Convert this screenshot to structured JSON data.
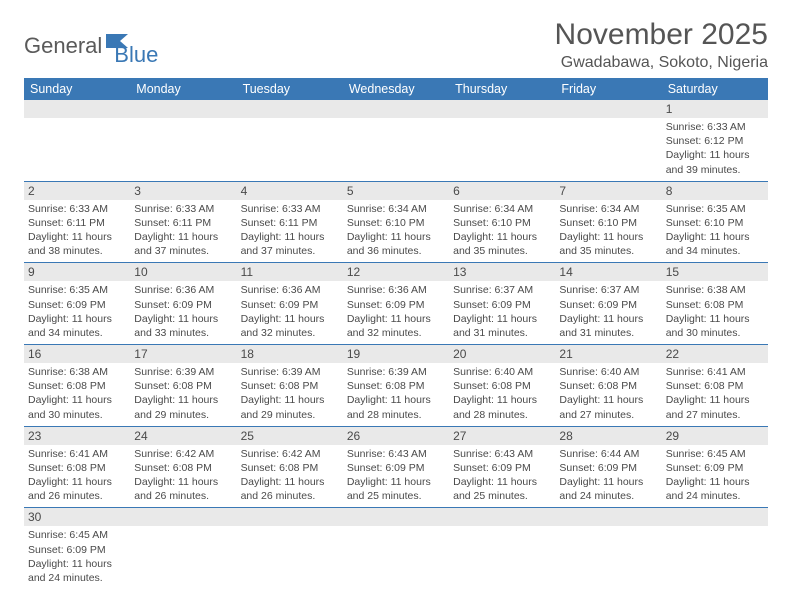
{
  "logo": {
    "text1": "General",
    "text2": "Blue"
  },
  "title": "November 2025",
  "location": "Gwadabawa, Sokoto, Nigeria",
  "colors": {
    "header_bg": "#3a78b5",
    "header_text": "#ffffff",
    "daynum_bg": "#e9e9e9",
    "cell_border": "#3a78b5",
    "text": "#4a4a4a",
    "title": "#555555"
  },
  "weekdays": [
    "Sunday",
    "Monday",
    "Tuesday",
    "Wednesday",
    "Thursday",
    "Friday",
    "Saturday"
  ],
  "weeks": [
    [
      {
        "n": "",
        "empty": true
      },
      {
        "n": "",
        "empty": true
      },
      {
        "n": "",
        "empty": true
      },
      {
        "n": "",
        "empty": true
      },
      {
        "n": "",
        "empty": true
      },
      {
        "n": "",
        "empty": true
      },
      {
        "n": "1",
        "sunrise": "6:33 AM",
        "sunset": "6:12 PM",
        "daylight": "11 hours and 39 minutes."
      }
    ],
    [
      {
        "n": "2",
        "sunrise": "6:33 AM",
        "sunset": "6:11 PM",
        "daylight": "11 hours and 38 minutes."
      },
      {
        "n": "3",
        "sunrise": "6:33 AM",
        "sunset": "6:11 PM",
        "daylight": "11 hours and 37 minutes."
      },
      {
        "n": "4",
        "sunrise": "6:33 AM",
        "sunset": "6:11 PM",
        "daylight": "11 hours and 37 minutes."
      },
      {
        "n": "5",
        "sunrise": "6:34 AM",
        "sunset": "6:10 PM",
        "daylight": "11 hours and 36 minutes."
      },
      {
        "n": "6",
        "sunrise": "6:34 AM",
        "sunset": "6:10 PM",
        "daylight": "11 hours and 35 minutes."
      },
      {
        "n": "7",
        "sunrise": "6:34 AM",
        "sunset": "6:10 PM",
        "daylight": "11 hours and 35 minutes."
      },
      {
        "n": "8",
        "sunrise": "6:35 AM",
        "sunset": "6:10 PM",
        "daylight": "11 hours and 34 minutes."
      }
    ],
    [
      {
        "n": "9",
        "sunrise": "6:35 AM",
        "sunset": "6:09 PM",
        "daylight": "11 hours and 34 minutes."
      },
      {
        "n": "10",
        "sunrise": "6:36 AM",
        "sunset": "6:09 PM",
        "daylight": "11 hours and 33 minutes."
      },
      {
        "n": "11",
        "sunrise": "6:36 AM",
        "sunset": "6:09 PM",
        "daylight": "11 hours and 32 minutes."
      },
      {
        "n": "12",
        "sunrise": "6:36 AM",
        "sunset": "6:09 PM",
        "daylight": "11 hours and 32 minutes."
      },
      {
        "n": "13",
        "sunrise": "6:37 AM",
        "sunset": "6:09 PM",
        "daylight": "11 hours and 31 minutes."
      },
      {
        "n": "14",
        "sunrise": "6:37 AM",
        "sunset": "6:09 PM",
        "daylight": "11 hours and 31 minutes."
      },
      {
        "n": "15",
        "sunrise": "6:38 AM",
        "sunset": "6:08 PM",
        "daylight": "11 hours and 30 minutes."
      }
    ],
    [
      {
        "n": "16",
        "sunrise": "6:38 AM",
        "sunset": "6:08 PM",
        "daylight": "11 hours and 30 minutes."
      },
      {
        "n": "17",
        "sunrise": "6:39 AM",
        "sunset": "6:08 PM",
        "daylight": "11 hours and 29 minutes."
      },
      {
        "n": "18",
        "sunrise": "6:39 AM",
        "sunset": "6:08 PM",
        "daylight": "11 hours and 29 minutes."
      },
      {
        "n": "19",
        "sunrise": "6:39 AM",
        "sunset": "6:08 PM",
        "daylight": "11 hours and 28 minutes."
      },
      {
        "n": "20",
        "sunrise": "6:40 AM",
        "sunset": "6:08 PM",
        "daylight": "11 hours and 28 minutes."
      },
      {
        "n": "21",
        "sunrise": "6:40 AM",
        "sunset": "6:08 PM",
        "daylight": "11 hours and 27 minutes."
      },
      {
        "n": "22",
        "sunrise": "6:41 AM",
        "sunset": "6:08 PM",
        "daylight": "11 hours and 27 minutes."
      }
    ],
    [
      {
        "n": "23",
        "sunrise": "6:41 AM",
        "sunset": "6:08 PM",
        "daylight": "11 hours and 26 minutes."
      },
      {
        "n": "24",
        "sunrise": "6:42 AM",
        "sunset": "6:08 PM",
        "daylight": "11 hours and 26 minutes."
      },
      {
        "n": "25",
        "sunrise": "6:42 AM",
        "sunset": "6:08 PM",
        "daylight": "11 hours and 26 minutes."
      },
      {
        "n": "26",
        "sunrise": "6:43 AM",
        "sunset": "6:09 PM",
        "daylight": "11 hours and 25 minutes."
      },
      {
        "n": "27",
        "sunrise": "6:43 AM",
        "sunset": "6:09 PM",
        "daylight": "11 hours and 25 minutes."
      },
      {
        "n": "28",
        "sunrise": "6:44 AM",
        "sunset": "6:09 PM",
        "daylight": "11 hours and 24 minutes."
      },
      {
        "n": "29",
        "sunrise": "6:45 AM",
        "sunset": "6:09 PM",
        "daylight": "11 hours and 24 minutes."
      }
    ],
    [
      {
        "n": "30",
        "sunrise": "6:45 AM",
        "sunset": "6:09 PM",
        "daylight": "11 hours and 24 minutes."
      },
      {
        "n": "",
        "empty": true
      },
      {
        "n": "",
        "empty": true
      },
      {
        "n": "",
        "empty": true
      },
      {
        "n": "",
        "empty": true
      },
      {
        "n": "",
        "empty": true
      },
      {
        "n": "",
        "empty": true
      }
    ]
  ],
  "labels": {
    "sunrise": "Sunrise:",
    "sunset": "Sunset:",
    "daylight": "Daylight:"
  }
}
